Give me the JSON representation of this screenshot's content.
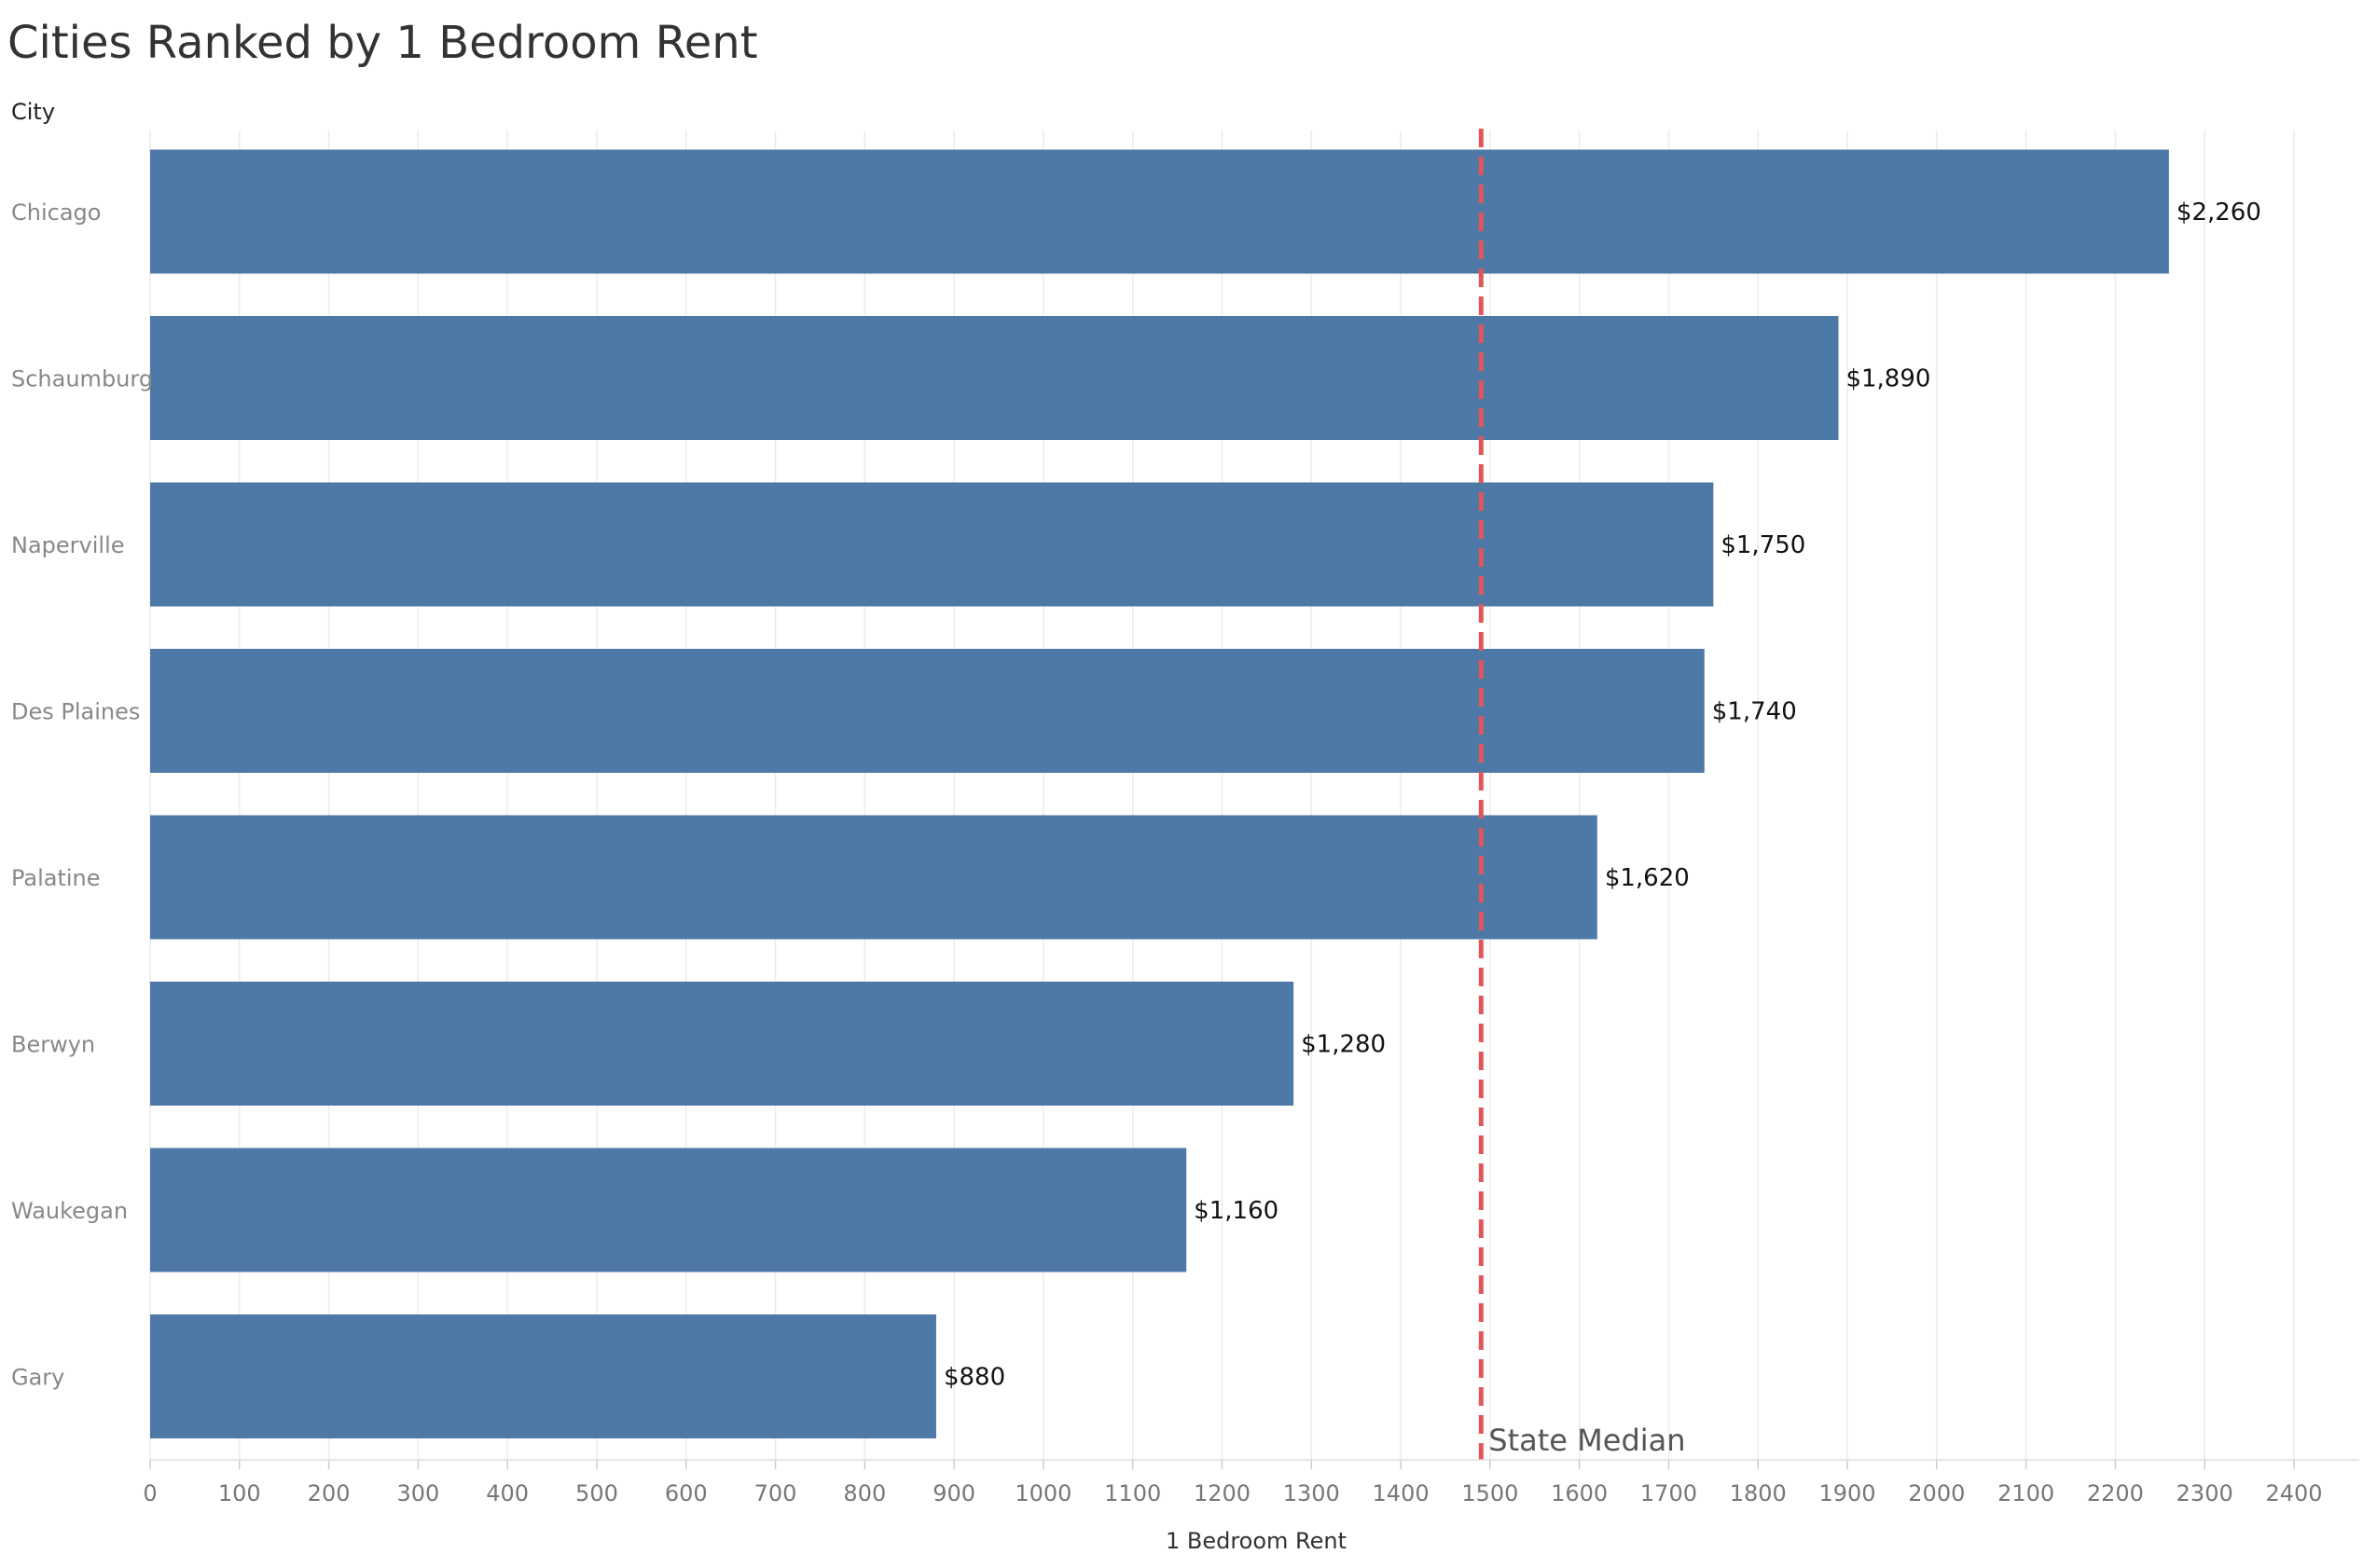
{
  "chart_data": {
    "type": "bar",
    "orientation": "horizontal",
    "title": "Cities Ranked by 1 Bedroom Rent",
    "category_header": "City",
    "categories": [
      "Chicago",
      "Schaumburg",
      "Naperville",
      "Des Plaines",
      "Palatine",
      "Berwyn",
      "Waukegan",
      "Gary"
    ],
    "values": [
      2260,
      1890,
      1750,
      1740,
      1620,
      1280,
      1160,
      880
    ],
    "value_labels": [
      "$2,260",
      "$1,890",
      "$1,750",
      "$1,740",
      "$1,620",
      "$1,280",
      "$1,160",
      "$880"
    ],
    "xlabel": "1 Bedroom Rent",
    "xlim": [
      0,
      2400
    ],
    "xticks": [
      0,
      100,
      200,
      300,
      400,
      500,
      600,
      700,
      800,
      900,
      1000,
      1100,
      1200,
      1300,
      1400,
      1500,
      1600,
      1700,
      1800,
      1900,
      2000,
      2100,
      2200,
      2300,
      2400
    ],
    "reference_line": {
      "label": "State Median",
      "value": 1490,
      "style": "dashed",
      "color": "#e15759"
    },
    "grid": "vertical",
    "bar_color": "#4e79a7"
  }
}
